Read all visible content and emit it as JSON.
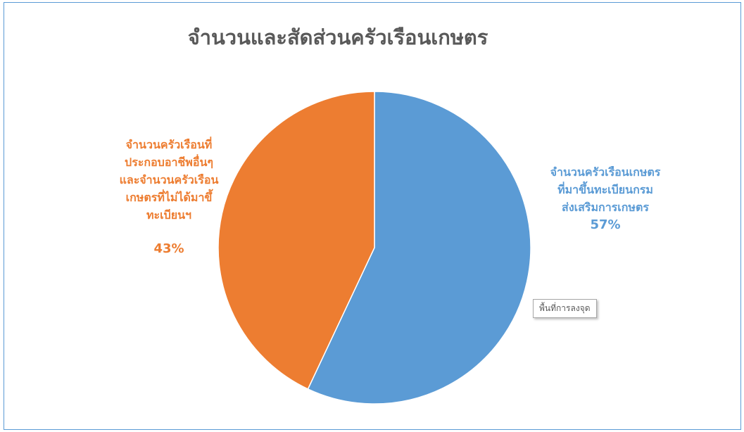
{
  "chart_data": {
    "type": "pie",
    "title": "จำนวนและสัดส่วนครัวเรือนเกษตร",
    "slices": [
      {
        "label_lines": [
          "จำนวนครัวเรือนเกษตร",
          "ที่มาขึ้นทะเบียนกรม",
          "ส่งเสริมการเกษตร"
        ],
        "value": 57,
        "value_label": "57%",
        "color": "#5b9bd5"
      },
      {
        "label_lines": [
          "จำนวนครัวเรือนที่",
          "ประกอบอาชีพอื่นๆ",
          "และจำนวนครัวเรือน",
          "เกษตรที่ไม่ได้มาขึ้",
          "ทะเบียนฯ"
        ],
        "value": 43,
        "value_label": "43%",
        "color": "#ed7d31"
      }
    ]
  },
  "tooltip": "พื้นที่การลงจุด"
}
